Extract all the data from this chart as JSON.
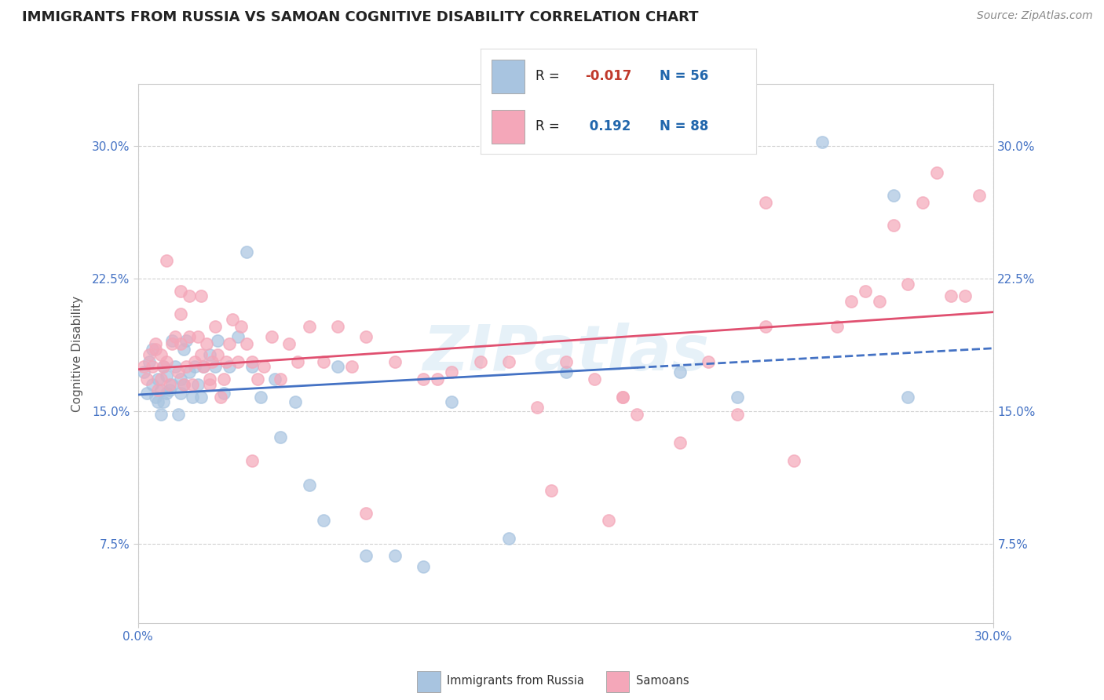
{
  "title": "IMMIGRANTS FROM RUSSIA VS SAMOAN COGNITIVE DISABILITY CORRELATION CHART",
  "source": "Source: ZipAtlas.com",
  "ylabel": "Cognitive Disability",
  "xlim": [
    0.0,
    0.3
  ],
  "ylim": [
    0.03,
    0.335
  ],
  "x_ticks": [
    0.0,
    0.3
  ],
  "x_tick_labels": [
    "0.0%",
    "30.0%"
  ],
  "y_ticks": [
    0.075,
    0.15,
    0.225,
    0.3
  ],
  "y_tick_labels": [
    "7.5%",
    "15.0%",
    "22.5%",
    "30.0%"
  ],
  "russia_R": -0.017,
  "russia_N": 56,
  "samoan_R": 0.192,
  "samoan_N": 88,
  "russia_color": "#a8c4e0",
  "samoan_color": "#f4a7b9",
  "russia_line_color": "#4472c4",
  "samoan_line_color": "#e05070",
  "background_color": "#ffffff",
  "watermark": "ZIPatlas",
  "russia_x": [
    0.002,
    0.003,
    0.004,
    0.005,
    0.005,
    0.006,
    0.007,
    0.007,
    0.008,
    0.008,
    0.009,
    0.009,
    0.01,
    0.01,
    0.011,
    0.012,
    0.012,
    0.013,
    0.014,
    0.015,
    0.015,
    0.016,
    0.016,
    0.017,
    0.018,
    0.019,
    0.02,
    0.021,
    0.022,
    0.023,
    0.025,
    0.027,
    0.028,
    0.03,
    0.032,
    0.035,
    0.038,
    0.04,
    0.043,
    0.048,
    0.05,
    0.055,
    0.06,
    0.065,
    0.07,
    0.08,
    0.09,
    0.1,
    0.11,
    0.13,
    0.15,
    0.19,
    0.21,
    0.24,
    0.265,
    0.27
  ],
  "russia_y": [
    0.172,
    0.16,
    0.178,
    0.165,
    0.185,
    0.158,
    0.168,
    0.155,
    0.162,
    0.148,
    0.155,
    0.175,
    0.16,
    0.17,
    0.162,
    0.165,
    0.19,
    0.175,
    0.148,
    0.168,
    0.16,
    0.165,
    0.185,
    0.19,
    0.172,
    0.158,
    0.175,
    0.165,
    0.158,
    0.175,
    0.182,
    0.175,
    0.19,
    0.16,
    0.175,
    0.192,
    0.24,
    0.175,
    0.158,
    0.168,
    0.135,
    0.155,
    0.108,
    0.088,
    0.175,
    0.068,
    0.068,
    0.062,
    0.155,
    0.078,
    0.172,
    0.172,
    0.158,
    0.302,
    0.272,
    0.158
  ],
  "samoan_x": [
    0.002,
    0.003,
    0.004,
    0.005,
    0.006,
    0.007,
    0.008,
    0.008,
    0.009,
    0.01,
    0.011,
    0.012,
    0.013,
    0.014,
    0.015,
    0.015,
    0.016,
    0.017,
    0.018,
    0.018,
    0.019,
    0.02,
    0.021,
    0.022,
    0.022,
    0.023,
    0.024,
    0.025,
    0.026,
    0.027,
    0.028,
    0.029,
    0.03,
    0.031,
    0.032,
    0.033,
    0.035,
    0.036,
    0.038,
    0.04,
    0.042,
    0.044,
    0.047,
    0.05,
    0.053,
    0.056,
    0.06,
    0.065,
    0.07,
    0.075,
    0.08,
    0.09,
    0.1,
    0.105,
    0.11,
    0.12,
    0.13,
    0.14,
    0.145,
    0.15,
    0.16,
    0.165,
    0.17,
    0.175,
    0.19,
    0.2,
    0.21,
    0.22,
    0.23,
    0.245,
    0.25,
    0.255,
    0.26,
    0.265,
    0.27,
    0.275,
    0.28,
    0.285,
    0.29,
    0.295,
    0.22,
    0.17,
    0.08,
    0.04,
    0.025,
    0.015,
    0.01,
    0.006
  ],
  "samoan_y": [
    0.175,
    0.168,
    0.182,
    0.175,
    0.185,
    0.162,
    0.168,
    0.182,
    0.175,
    0.178,
    0.165,
    0.188,
    0.192,
    0.172,
    0.188,
    0.205,
    0.165,
    0.175,
    0.192,
    0.215,
    0.165,
    0.178,
    0.192,
    0.182,
    0.215,
    0.175,
    0.188,
    0.165,
    0.178,
    0.198,
    0.182,
    0.158,
    0.168,
    0.178,
    0.188,
    0.202,
    0.178,
    0.198,
    0.188,
    0.178,
    0.168,
    0.175,
    0.192,
    0.168,
    0.188,
    0.178,
    0.198,
    0.178,
    0.198,
    0.175,
    0.192,
    0.178,
    0.168,
    0.168,
    0.172,
    0.178,
    0.178,
    0.152,
    0.105,
    0.178,
    0.168,
    0.088,
    0.158,
    0.148,
    0.132,
    0.178,
    0.148,
    0.198,
    0.122,
    0.198,
    0.212,
    0.218,
    0.212,
    0.255,
    0.222,
    0.268,
    0.285,
    0.215,
    0.215,
    0.272,
    0.268,
    0.158,
    0.092,
    0.122,
    0.168,
    0.218,
    0.235,
    0.188
  ]
}
